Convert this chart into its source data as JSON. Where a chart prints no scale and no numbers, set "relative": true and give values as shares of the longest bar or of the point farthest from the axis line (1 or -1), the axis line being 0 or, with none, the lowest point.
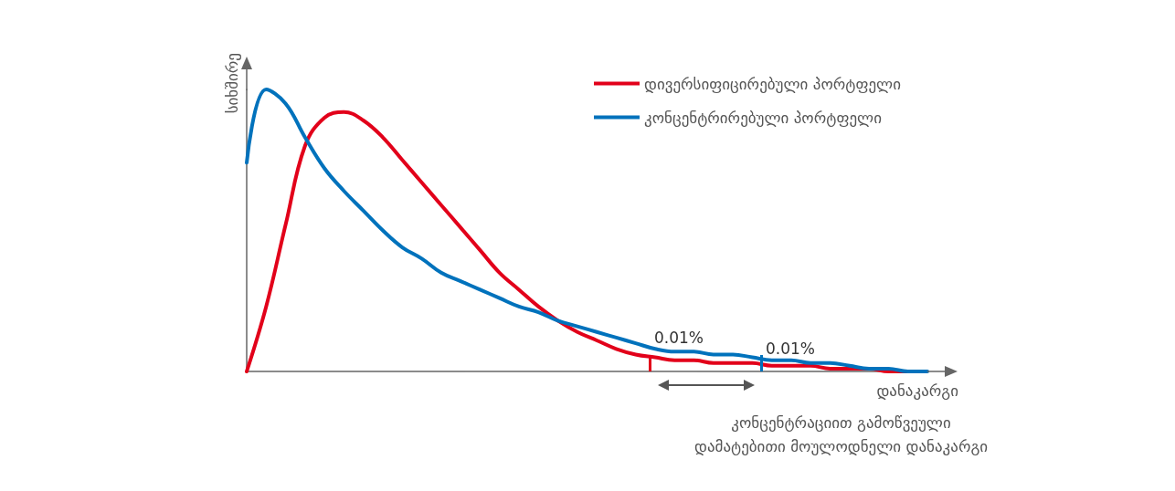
{
  "chart_data": {
    "type": "line",
    "relative": true,
    "xlabel": "დანაკარგი",
    "ylabel": "სიხშირე",
    "categories": [
      null,
      null,
      null,
      null,
      null,
      null,
      null,
      null,
      null,
      null,
      null,
      null,
      null,
      null,
      null,
      null,
      null,
      null,
      null,
      null,
      null,
      null,
      null,
      null,
      null,
      null,
      null,
      null,
      null,
      null,
      null,
      null,
      null,
      null,
      null,
      null
    ],
    "series": [
      {
        "name": "დივერსიფიცირებული პორტფელი",
        "color": "#e2001a",
        "values": [
          0,
          0.23,
          0.52,
          0.8,
          0.9,
          0.92,
          0.89,
          0.83,
          0.75,
          0.67,
          0.59,
          0.51,
          0.43,
          0.35,
          0.29,
          0.23,
          0.18,
          0.14,
          0.11,
          0.08,
          0.06,
          0.05,
          0.04,
          0.04,
          0.03,
          0.03,
          0.03,
          0.02,
          0.02,
          0.02,
          0.01,
          0.01,
          0.01,
          0,
          0,
          null
        ]
      },
      {
        "name": "კონცენტრირებული პორტფელი",
        "color": "#0072bc",
        "values": [
          0.74,
          1,
          0.95,
          0.83,
          0.72,
          0.64,
          0.57,
          0.5,
          0.44,
          0.4,
          0.35,
          0.32,
          0.29,
          0.26,
          0.23,
          0.21,
          0.18,
          0.16,
          0.14,
          0.12,
          0.1,
          0.08,
          0.07,
          0.07,
          0.06,
          0.06,
          0.05,
          0.04,
          0.04,
          0.03,
          0.03,
          0.02,
          0.01,
          0.01,
          0,
          0
        ]
      }
    ],
    "annotations": [
      "0.01%",
      "0.01%",
      "კონცენტრაციით გამოწვეული\nდამატებითი მოულოდნელი დანაკარგი"
    ],
    "legend": "top right",
    "marker": "none",
    "line_style": "solid",
    "grid": false
  }
}
